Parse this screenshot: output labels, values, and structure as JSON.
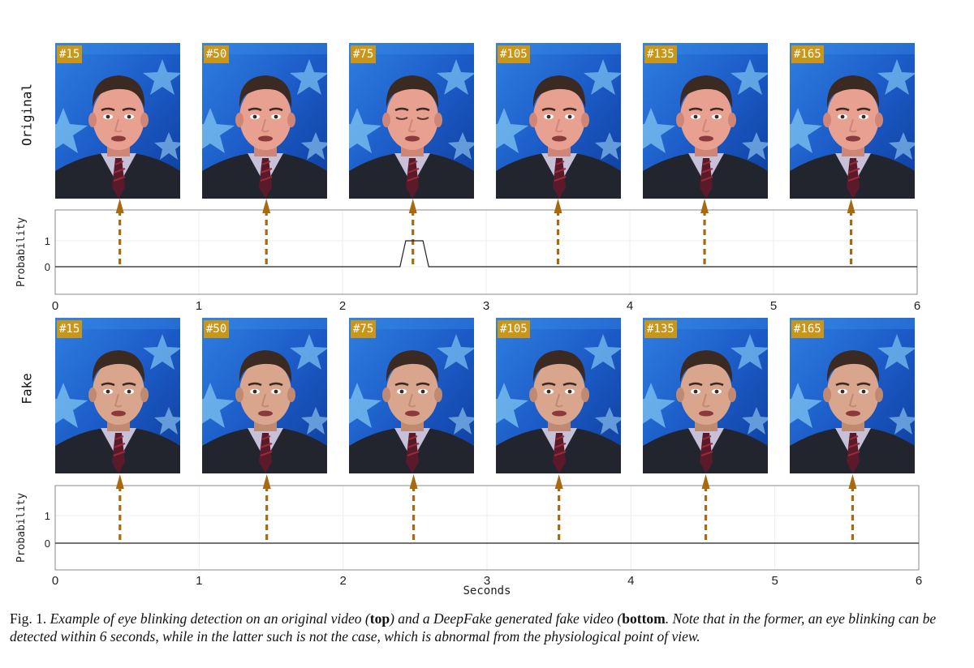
{
  "rows": [
    {
      "label": "Original",
      "frames": [
        "#15",
        "#50",
        "#75",
        "#105",
        "#135",
        "#165"
      ],
      "eyes_closed": [
        false,
        false,
        true,
        false,
        false,
        false
      ],
      "face_variant": "original"
    },
    {
      "label": "Fake",
      "frames": [
        "#15",
        "#50",
        "#75",
        "#105",
        "#135",
        "#165"
      ],
      "eyes_closed": [
        false,
        false,
        false,
        false,
        false,
        false
      ],
      "face_variant": "fake"
    }
  ],
  "chart_data": [
    {
      "type": "line",
      "ylabel": "Probability",
      "xlabel": "",
      "xlim": [
        0,
        6
      ],
      "ylim": [
        -1,
        2
      ],
      "xticks": [
        "0",
        "1",
        "2",
        "3",
        "4",
        "5",
        "6"
      ],
      "yticks": [
        "0",
        "1"
      ],
      "grid": true,
      "series": [
        {
          "x": [
            0,
            2.4,
            2.44,
            2.56,
            2.6,
            6
          ],
          "y": [
            0,
            0,
            1,
            1,
            0,
            0
          ]
        }
      ],
      "frame_markers_seconds": [
        0.45,
        1.47,
        2.49,
        3.5,
        4.52,
        5.54
      ]
    },
    {
      "type": "line",
      "ylabel": "Probability",
      "xlabel": "Seconds",
      "xlim": [
        0,
        6
      ],
      "ylim": [
        -1,
        2
      ],
      "xticks": [
        "0",
        "1",
        "2",
        "3",
        "4",
        "5",
        "6"
      ],
      "yticks": [
        "0",
        "1"
      ],
      "grid": true,
      "series": [
        {
          "x": [
            0,
            6
          ],
          "y": [
            0,
            0
          ]
        }
      ],
      "frame_markers_seconds": [
        0.45,
        1.47,
        2.49,
        3.5,
        4.52,
        5.54
      ]
    }
  ],
  "colors": {
    "arrow": "#a8690f",
    "badge": "#c9961a",
    "background_blue": "#1c5cc8",
    "star": "#7ec4f2"
  },
  "caption": {
    "fig_label": "Fig. 1.",
    "text_1": "Example of eye blinking detection on an original video (",
    "bold_1": "top",
    "text_2": ") and a DeepFake generated fake video (",
    "bold_2": "bottom",
    "text_3": ". Note that in the former, an eye blinking can be detected within 6 seconds, while in the latter such is not the case, which is abnormal from the physiological point of view."
  }
}
